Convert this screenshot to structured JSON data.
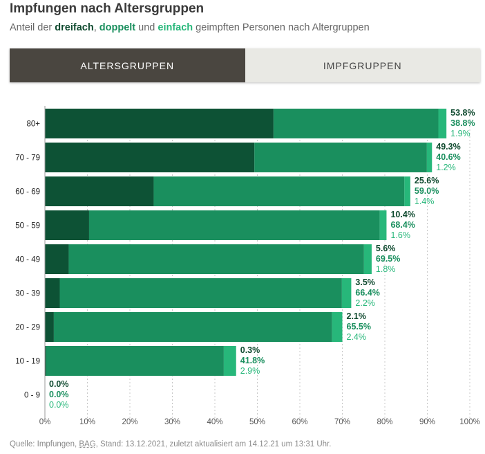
{
  "header": {
    "title": "Impfungen nach Altersgruppen",
    "subtitle": {
      "prefix": "Anteil der ",
      "kw1": "dreifach",
      "sep1": ", ",
      "kw2": "doppelt",
      "sep2": " und ",
      "kw3": "einfach",
      "suffix": " geimpften Personen nach Altergruppen"
    }
  },
  "tabs": {
    "active_label": "ALTERSGRUPPEN",
    "inactive_label": "IMPFGRUPPEN"
  },
  "colors": {
    "dreifach": "#0d5235",
    "doppelt": "#1a8f5e",
    "einfach": "#27b77a",
    "label_dark": "#0f4a2f",
    "label_mid": "#1a8f5e",
    "label_light": "#27b77a"
  },
  "chart_data": {
    "type": "bar",
    "orientation": "horizontal",
    "stacked": true,
    "categories": [
      "80+",
      "70 - 79",
      "60 - 69",
      "50 - 59",
      "40 - 49",
      "30 - 39",
      "20 - 29",
      "10 - 19",
      "0 - 9"
    ],
    "series": [
      {
        "name": "dreifach",
        "values": [
          53.8,
          49.3,
          25.6,
          10.4,
          5.6,
          3.5,
          2.1,
          0.3,
          0.0
        ]
      },
      {
        "name": "doppelt",
        "values": [
          38.8,
          40.6,
          59.0,
          68.4,
          69.5,
          66.4,
          65.5,
          41.8,
          0.0
        ]
      },
      {
        "name": "einfach",
        "values": [
          1.9,
          1.2,
          1.4,
          1.6,
          1.8,
          2.2,
          2.4,
          2.9,
          0.0
        ]
      }
    ],
    "xlim": [
      0,
      100
    ],
    "xticks": [
      "0%",
      "10%",
      "20%",
      "30%",
      "40%",
      "50%",
      "60%",
      "70%",
      "80%",
      "90%",
      "100%"
    ],
    "grid": true
  },
  "footer": {
    "source_prefix": "Quelle: Impfungen, ",
    "source_abbr": "BAG",
    "source_suffix": ", Stand: 13.12.2021, zuletzt aktualisiert am 14.12.21 um 13:31 Uhr."
  }
}
